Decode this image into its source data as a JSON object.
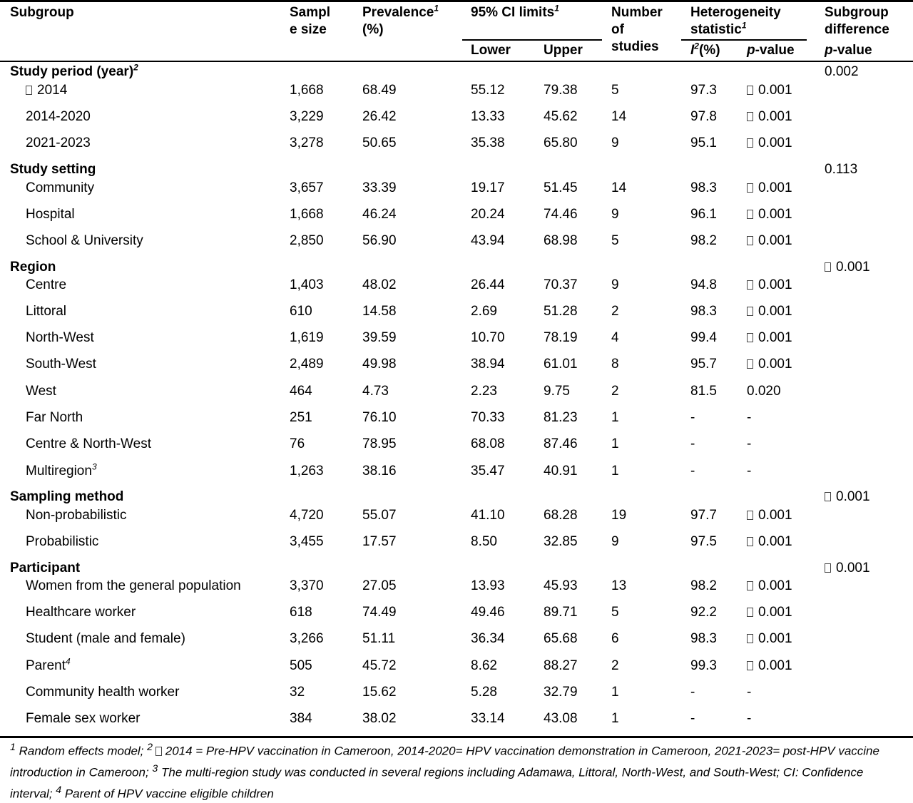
{
  "headers": {
    "subgroup": "Subgroup",
    "sample_size_1": "Sampl",
    "sample_size_2": "e size",
    "prevalence_1": "Prevalence",
    "prevalence_sup": "1",
    "prevalence_2": "(%)",
    "ci": "95% CI limits",
    "ci_sup": "1",
    "ci_lower": "Lower",
    "ci_upper": "Upper",
    "studies_1": "Number",
    "studies_2": "of",
    "studies_3": "studies",
    "het_1": "Heterogeneity",
    "het_2": "statistic",
    "het_sup": "1",
    "i2_i": "I",
    "i2_sup": "2",
    "i2_rest": "(%)",
    "pval_p": "p",
    "pval_rest": "-value",
    "diff_1": "Subgroup",
    "diff_2": "difference",
    "diff_p": "p",
    "diff_rest": "-value"
  },
  "groups": [
    {
      "label": "Study period (year)",
      "label_sup": "2",
      "difference": "0.002",
      "difference_box": false,
      "rows": [
        {
          "name": "2014",
          "name_box": true,
          "name_sup": "",
          "n": "1,668",
          "prev": "68.49",
          "lower": "55.12",
          "upper": "79.38",
          "studies": "5",
          "i2": "97.3",
          "p": "0.001",
          "p_box": true
        },
        {
          "name": "2014-2020",
          "name_box": false,
          "name_sup": "",
          "n": "3,229",
          "prev": "26.42",
          "lower": "13.33",
          "upper": "45.62",
          "studies": "14",
          "i2": "97.8",
          "p": "0.001",
          "p_box": true
        },
        {
          "name": "2021-2023",
          "name_box": false,
          "name_sup": "",
          "n": "3,278",
          "prev": "50.65",
          "lower": "35.38",
          "upper": "65.80",
          "studies": "9",
          "i2": "95.1",
          "p": "0.001",
          "p_box": true
        }
      ]
    },
    {
      "label": "Study setting",
      "label_sup": "",
      "difference": "0.113",
      "difference_box": false,
      "rows": [
        {
          "name": "Community",
          "name_box": false,
          "name_sup": "",
          "n": "3,657",
          "prev": "33.39",
          "lower": "19.17",
          "upper": "51.45",
          "studies": "14",
          "i2": "98.3",
          "p": "0.001",
          "p_box": true
        },
        {
          "name": "Hospital",
          "name_box": false,
          "name_sup": "",
          "n": "1,668",
          "prev": "46.24",
          "lower": "20.24",
          "upper": "74.46",
          "studies": "9",
          "i2": "96.1",
          "p": "0.001",
          "p_box": true
        },
        {
          "name": "School & University",
          "name_box": false,
          "name_sup": "",
          "n": "2,850",
          "prev": "56.90",
          "lower": "43.94",
          "upper": "68.98",
          "studies": "5",
          "i2": "98.2",
          "p": "0.001",
          "p_box": true
        }
      ]
    },
    {
      "label": "Region",
      "label_sup": "",
      "difference": "0.001",
      "difference_box": true,
      "rows": [
        {
          "name": "Centre",
          "name_box": false,
          "name_sup": "",
          "n": "1,403",
          "prev": "48.02",
          "lower": "26.44",
          "upper": "70.37",
          "studies": "9",
          "i2": "94.8",
          "p": "0.001",
          "p_box": true
        },
        {
          "name": "Littoral",
          "name_box": false,
          "name_sup": "",
          "n": "610",
          "prev": "14.58",
          "lower": "2.69",
          "upper": "51.28",
          "studies": "2",
          "i2": "98.3",
          "p": "0.001",
          "p_box": true
        },
        {
          "name": "North-West",
          "name_box": false,
          "name_sup": "",
          "n": "1,619",
          "prev": "39.59",
          "lower": "10.70",
          "upper": "78.19",
          "studies": "4",
          "i2": "99.4",
          "p": "0.001",
          "p_box": true
        },
        {
          "name": "South-West",
          "name_box": false,
          "name_sup": "",
          "n": "2,489",
          "prev": "49.98",
          "lower": "38.94",
          "upper": "61.01",
          "studies": "8",
          "i2": "95.7",
          "p": "0.001",
          "p_box": true
        },
        {
          "name": "West",
          "name_box": false,
          "name_sup": "",
          "n": "464",
          "prev": "4.73",
          "lower": "2.23",
          "upper": "9.75",
          "studies": "2",
          "i2": "81.5",
          "p": "0.020",
          "p_box": false
        },
        {
          "name": "Far North",
          "name_box": false,
          "name_sup": "",
          "n": "251",
          "prev": "76.10",
          "lower": "70.33",
          "upper": "81.23",
          "studies": "1",
          "i2": "-",
          "p": "-",
          "p_box": false
        },
        {
          "name": "Centre & North-West",
          "name_box": false,
          "name_sup": "",
          "n": "76",
          "prev": "78.95",
          "lower": "68.08",
          "upper": "87.46",
          "studies": "1",
          "i2": "-",
          "p": "-",
          "p_box": false
        },
        {
          "name": "Multiregion",
          "name_box": false,
          "name_sup": "3",
          "n": "1,263",
          "prev": "38.16",
          "lower": "35.47",
          "upper": "40.91",
          "studies": "1",
          "i2": "-",
          "p": "-",
          "p_box": false
        }
      ]
    },
    {
      "label": "Sampling method",
      "label_sup": "",
      "difference": "0.001",
      "difference_box": true,
      "rows": [
        {
          "name": "Non-probabilistic",
          "name_box": false,
          "name_sup": "",
          "n": "4,720",
          "prev": "55.07",
          "lower": "41.10",
          "upper": "68.28",
          "studies": "19",
          "i2": "97.7",
          "p": "0.001",
          "p_box": true
        },
        {
          "name": "Probabilistic",
          "name_box": false,
          "name_sup": "",
          "n": "3,455",
          "prev": "17.57",
          "lower": "8.50",
          "upper": "32.85",
          "studies": "9",
          "i2": "97.5",
          "p": "0.001",
          "p_box": true
        }
      ]
    },
    {
      "label": "Participant",
      "label_sup": "",
      "difference": "0.001",
      "difference_box": true,
      "rows": [
        {
          "name": "Women from the general population",
          "name_box": false,
          "name_sup": "",
          "n": "3,370",
          "prev": "27.05",
          "lower": "13.93",
          "upper": "45.93",
          "studies": "13",
          "i2": "98.2",
          "p": "0.001",
          "p_box": true
        },
        {
          "name": "Healthcare worker",
          "name_box": false,
          "name_sup": "",
          "n": "618",
          "prev": "74.49",
          "lower": "49.46",
          "upper": "89.71",
          "studies": "5",
          "i2": "92.2",
          "p": "0.001",
          "p_box": true
        },
        {
          "name": "Student (male and female)",
          "name_box": false,
          "name_sup": "",
          "n": "3,266",
          "prev": "51.11",
          "lower": "36.34",
          "upper": "65.68",
          "studies": "6",
          "i2": "98.3",
          "p": "0.001",
          "p_box": true
        },
        {
          "name": "Parent",
          "name_box": false,
          "name_sup": "4",
          "n": "505",
          "prev": "45.72",
          "lower": "8.62",
          "upper": "88.27",
          "studies": "2",
          "i2": "99.3",
          "p": "0.001",
          "p_box": true
        },
        {
          "name": "Community health worker",
          "name_box": false,
          "name_sup": "",
          "n": "32",
          "prev": "15.62",
          "lower": "5.28",
          "upper": "32.79",
          "studies": "1",
          "i2": "-",
          "p": "-",
          "p_box": false
        },
        {
          "name": "Female sex worker",
          "name_box": false,
          "name_sup": "",
          "n": "384",
          "prev": "38.02",
          "lower": "33.14",
          "upper": "43.08",
          "studies": "1",
          "i2": "-",
          "p": "-",
          "p_box": false
        }
      ]
    }
  ],
  "footnote": {
    "sup1": "1",
    "text1": " Random effects model; ",
    "sup2": "2",
    "text2": " 2014 = Pre-HPV vaccination in Cameroon, 2014-2020= HPV vaccination demonstration in Cameroon, 2021-2023= post-HPV vaccine introduction in Cameroon; ",
    "sup3": "3",
    "text3": " The multi-region study was conducted in several regions including Adamawa, Littoral, North-West, and South-West; CI: Confidence interval; ",
    "sup4": "4",
    "text4": " Parent of HPV vaccine eligible children"
  }
}
